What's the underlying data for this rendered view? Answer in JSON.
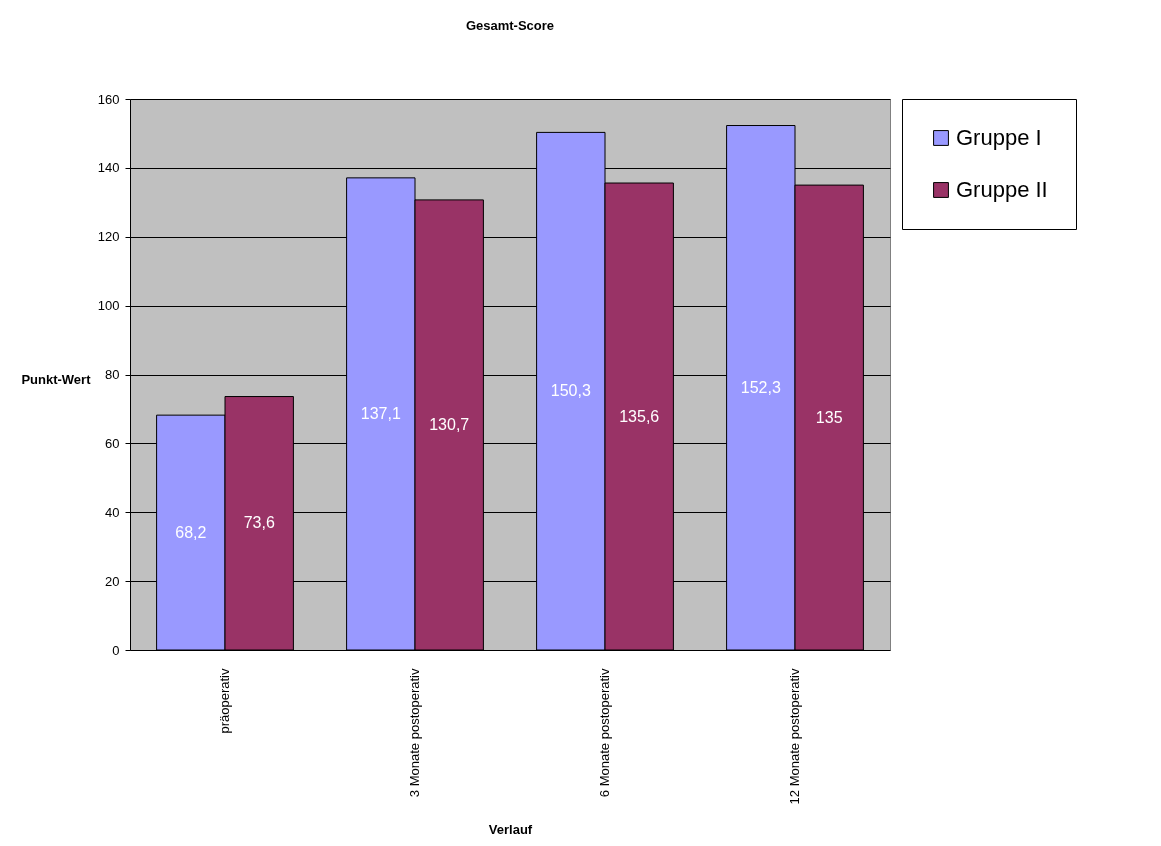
{
  "chart_data": {
    "type": "bar",
    "title": "Gesamt-Score",
    "xlabel": "Verlauf",
    "ylabel": "Punkt-Wert",
    "categories": [
      "präoperativ",
      "3 Monate postoperativ",
      "6 Monate postoperativ",
      "12 Monate postoperativ"
    ],
    "series": [
      {
        "name": "Gruppe I",
        "color": "#9999ff",
        "values": [
          68.2,
          137.1,
          150.3,
          152.3
        ],
        "value_labels": [
          "68,2",
          "137,1",
          "150,3",
          "152,3"
        ]
      },
      {
        "name": "Gruppe II",
        "color": "#993366",
        "values": [
          73.6,
          130.7,
          135.6,
          135
        ],
        "value_labels": [
          "73,6",
          "130,7",
          "135,6",
          "135"
        ]
      }
    ],
    "ylim": [
      0,
      160
    ],
    "yticks": [
      0,
      20,
      40,
      60,
      80,
      100,
      120,
      140,
      160
    ],
    "grid": "y",
    "legend": "top right"
  }
}
